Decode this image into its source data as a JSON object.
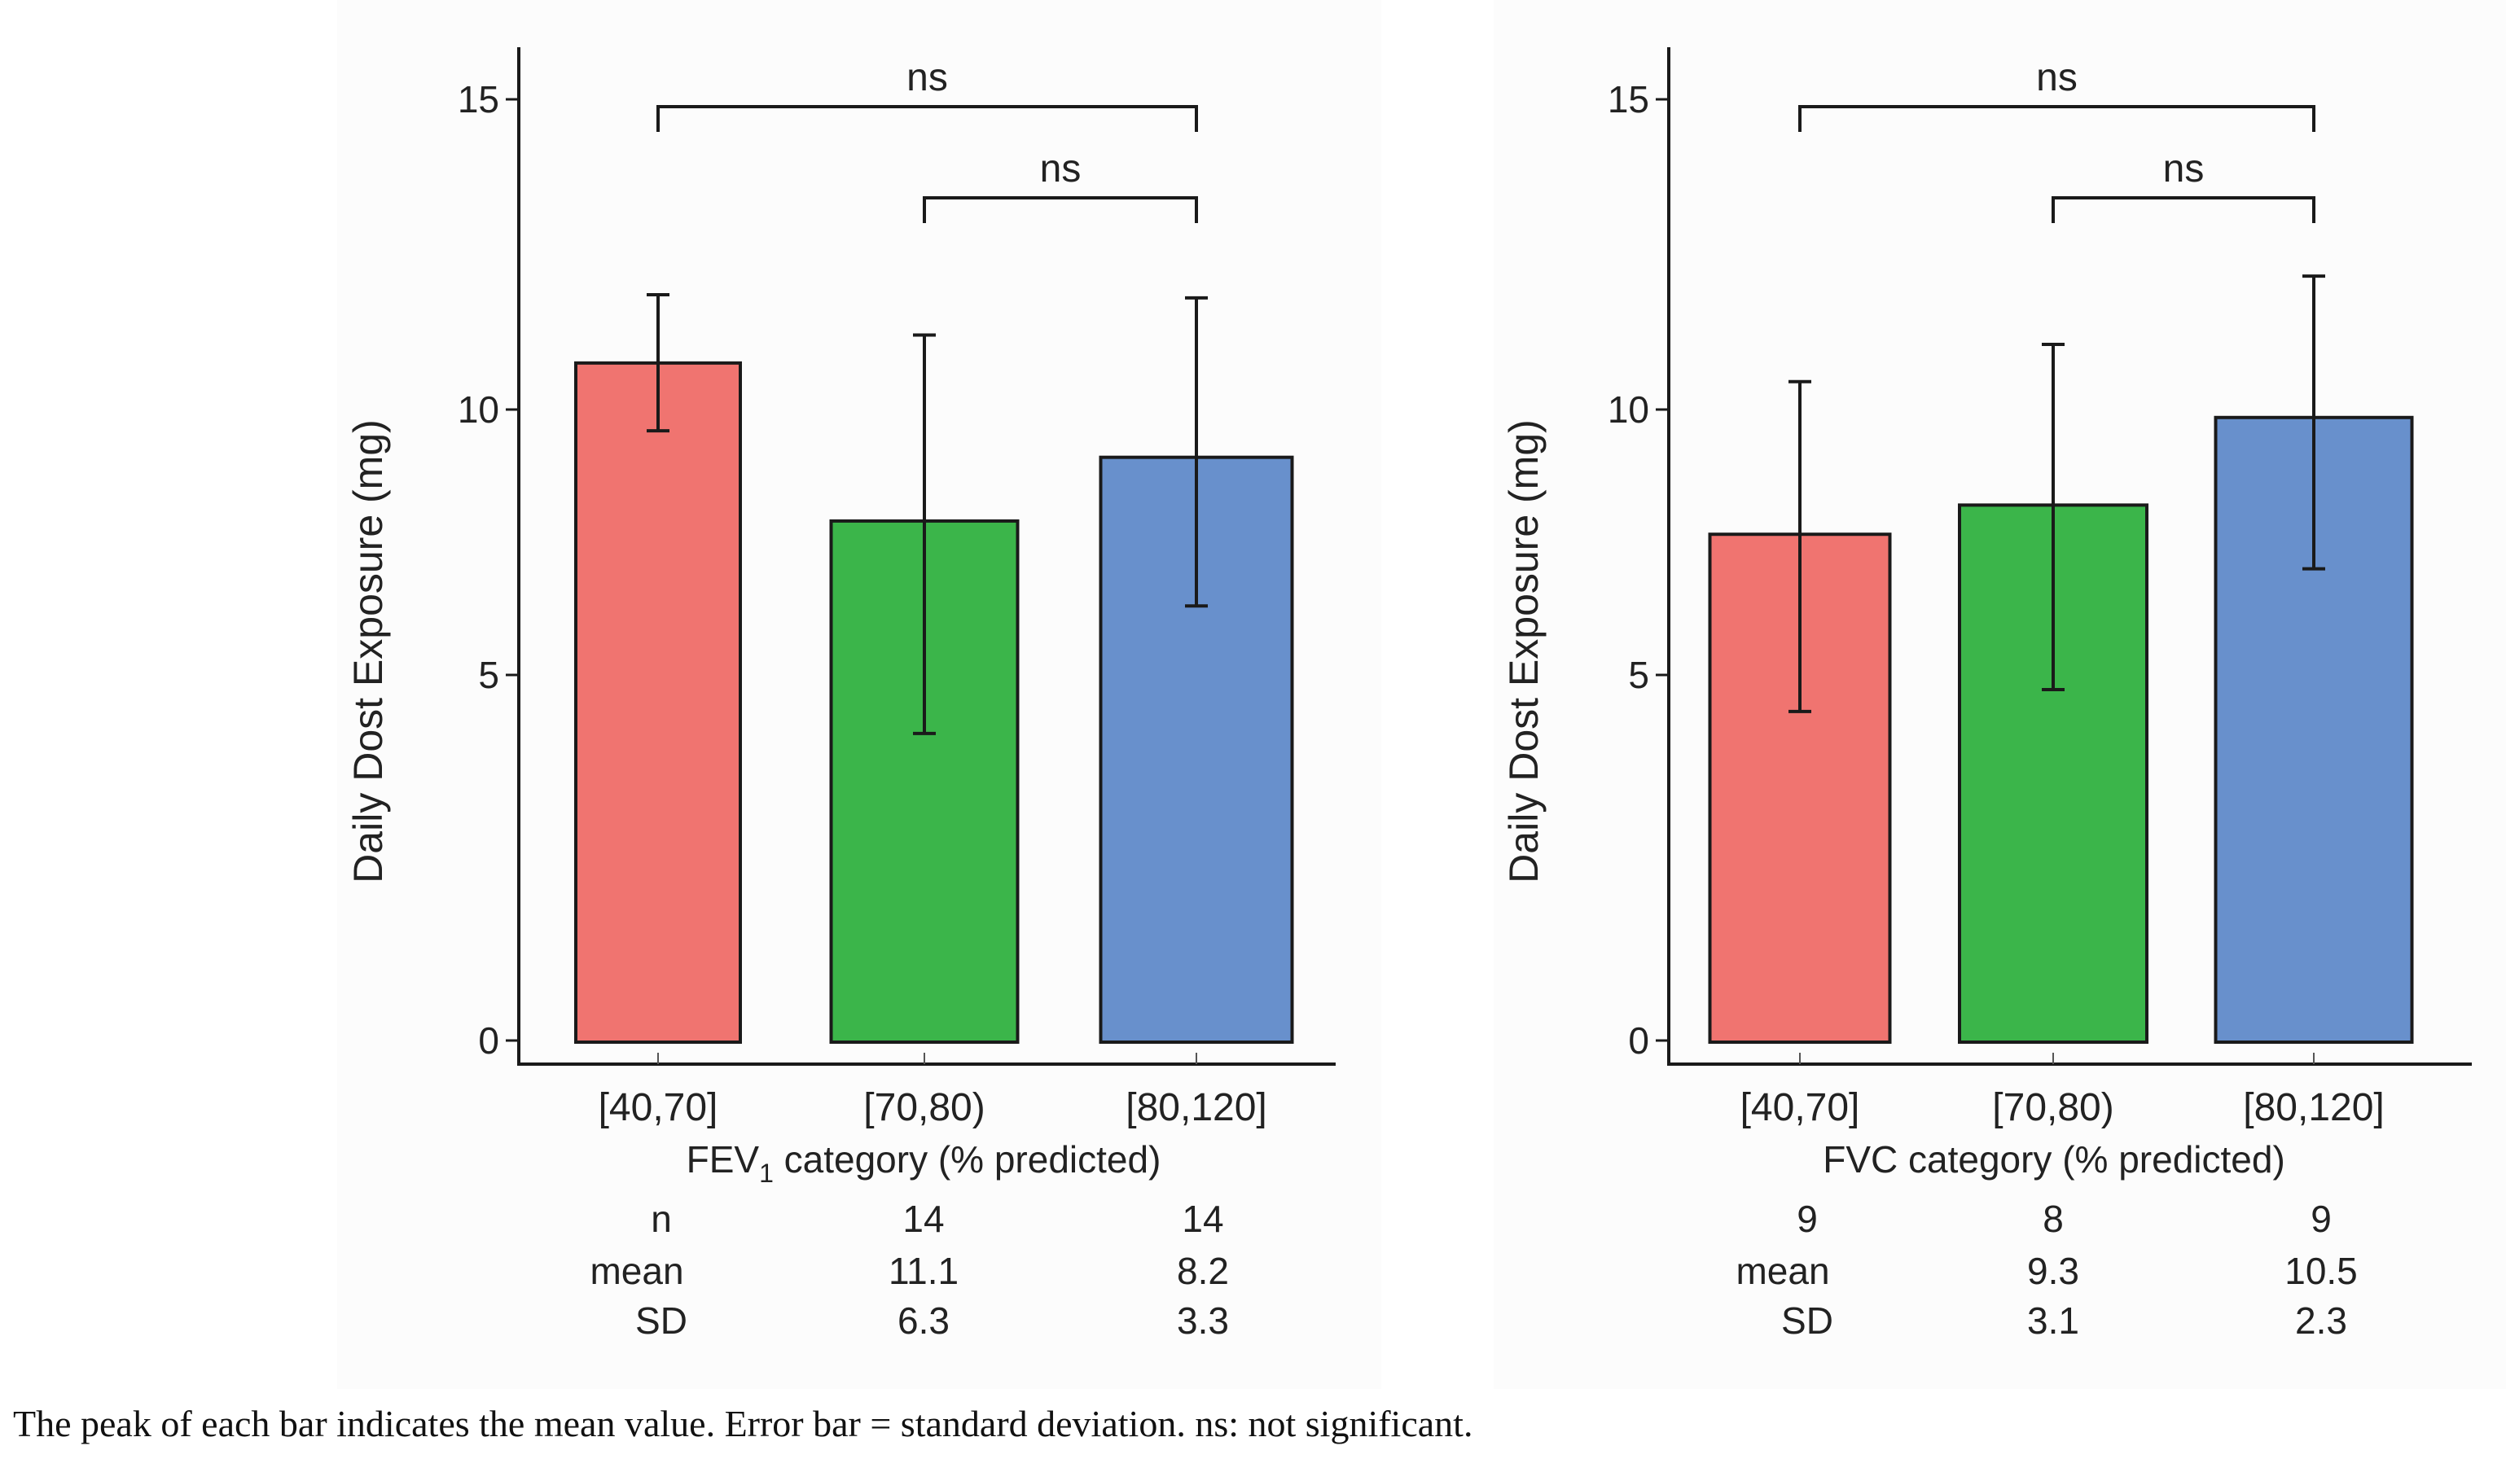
{
  "caption": "The peak of each bar indicates the mean value. Error bar = standard deviation. ns: not significant.",
  "colors": {
    "red": "#f07470",
    "green": "#3bb54a",
    "blue": "#6890cc",
    "ink": "#1a1a1a"
  },
  "chart_data": [
    {
      "type": "bar",
      "title": "",
      "xlabel": "FEV",
      "xlabel_sub": "1",
      "xlabel_rest": " category (% predicted)",
      "ylabel": "Daily Dost Exposure (mg)",
      "ylim": [
        0,
        15.9
      ],
      "yticks": [
        0,
        5,
        10,
        15
      ],
      "grid": false,
      "categories": [
        "[40,70]",
        "[70,80)",
        "[80,120]"
      ],
      "values": [
        10.75,
        7.9,
        9.1
      ],
      "error_low": [
        9.6,
        4.2,
        6.3
      ],
      "error_high": [
        11.85,
        11.2,
        11.8
      ],
      "bar_colors": [
        "red",
        "green",
        "blue"
      ],
      "significance": [
        {
          "from": 0,
          "to": 2,
          "label": "ns",
          "level": 15
        },
        {
          "from": 1,
          "to": 2,
          "label": "ns",
          "level": 13.0
        }
      ],
      "table": {
        "row_labels": [
          "n",
          "mean",
          "SD"
        ],
        "columns": [
          [
            "",
            "",
            ""
          ],
          [
            "14",
            "11.1",
            "6.3"
          ],
          [
            "14",
            "8.2",
            "3.3"
          ]
        ]
      }
    },
    {
      "type": "bar",
      "title": "",
      "xlabel": "FVC category (% predicted)",
      "ylabel": "Daily Dost Exposure (mg)",
      "ylim": [
        0,
        15.9
      ],
      "yticks": [
        0,
        5,
        10,
        15
      ],
      "grid": false,
      "categories": [
        "[40,70]",
        "[70,80)",
        "[80,120]"
      ],
      "values": [
        7.65,
        8.2,
        9.85
      ],
      "error_low": [
        4.5,
        4.8,
        7.0
      ],
      "error_high": [
        10.45,
        11.05,
        12.15
      ],
      "bar_colors": [
        "red",
        "green",
        "blue"
      ],
      "significance": [
        {
          "from": 0,
          "to": 2,
          "label": "ns",
          "level": 15
        },
        {
          "from": 1,
          "to": 2,
          "label": "ns",
          "level": 13.0
        }
      ],
      "table": {
        "row_labels": [
          "",
          "mean",
          "SD"
        ],
        "columns": [
          [
            "9",
            "",
            ""
          ],
          [
            "8",
            "9.3",
            "3.1"
          ],
          [
            "9",
            "10.5",
            "2.3"
          ]
        ]
      }
    }
  ]
}
